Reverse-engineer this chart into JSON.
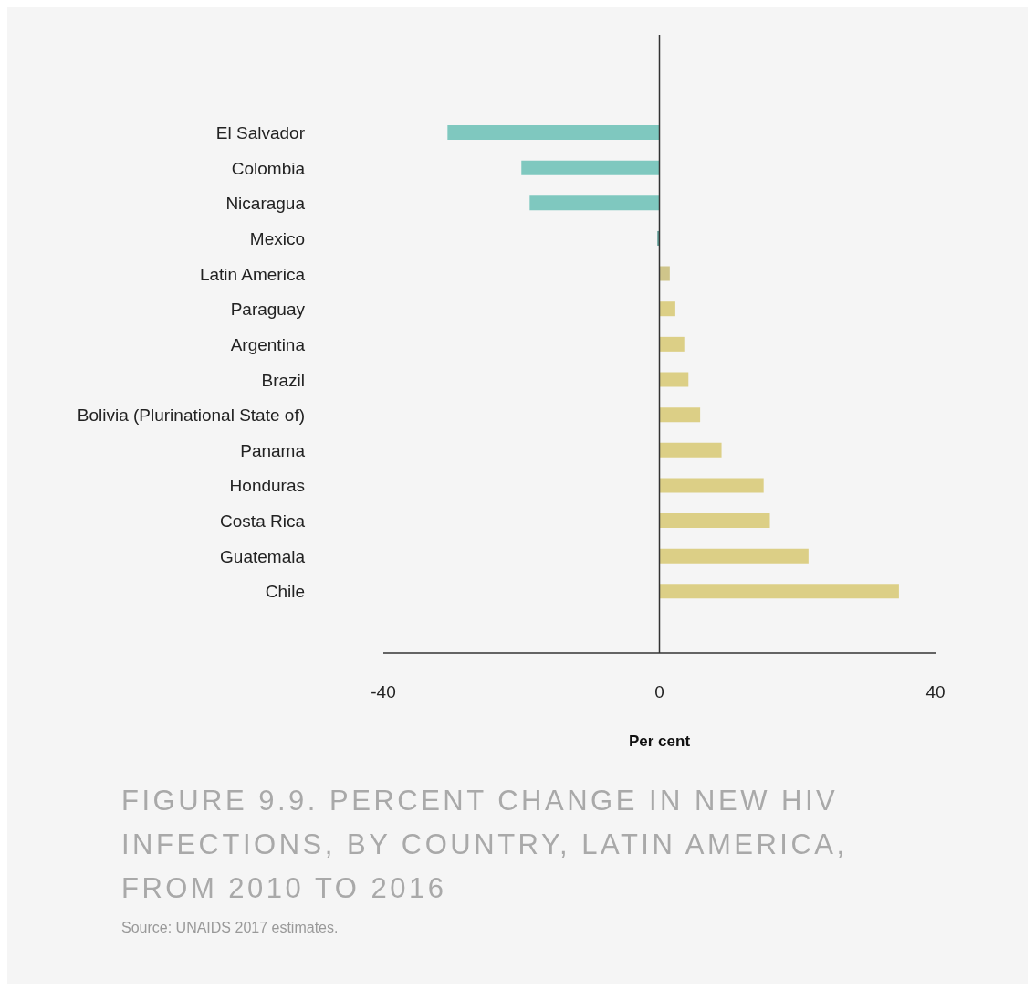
{
  "chart_data": {
    "type": "bar",
    "orientation": "horizontal",
    "title": "FIGURE 9.9. PERCENT CHANGE IN NEW HIV INFECTIONS, BY COUNTRY, LATIN AMERICA, FROM 2010 TO 2016",
    "xlabel": "Per cent",
    "categories": [
      "El Salvador",
      "Colombia",
      "Nicaragua",
      "Mexico",
      "Latin America",
      "Paraguay",
      "Argentina",
      "Brazil",
      "Bolivia (Plurinational State of)",
      "Panama",
      "Honduras",
      "Costa Rica",
      "Guatemala",
      "Chile"
    ],
    "values": [
      -30.7,
      -20.0,
      -18.8,
      -0.3,
      1.5,
      2.3,
      3.6,
      4.2,
      5.9,
      9.0,
      15.1,
      16.0,
      21.6,
      34.7
    ],
    "colors": [
      "#7fc8bf",
      "#7fc8bf",
      "#7fc8bf",
      "#5f9c96",
      "#cfc58a",
      "#dccf86",
      "#dccf86",
      "#dccf86",
      "#dccf86",
      "#dccf86",
      "#dccf86",
      "#dccf86",
      "#dccf86",
      "#dccf86"
    ],
    "xlim": [
      -40,
      40
    ],
    "xticks": [
      -40,
      0,
      40
    ],
    "grid": false,
    "legend": false,
    "ref_lines": [
      {
        "axis": "x",
        "value": 0,
        "color": "#333333"
      }
    ],
    "annotations": [
      "Source: UNAIDS 2017 estimates."
    ]
  }
}
